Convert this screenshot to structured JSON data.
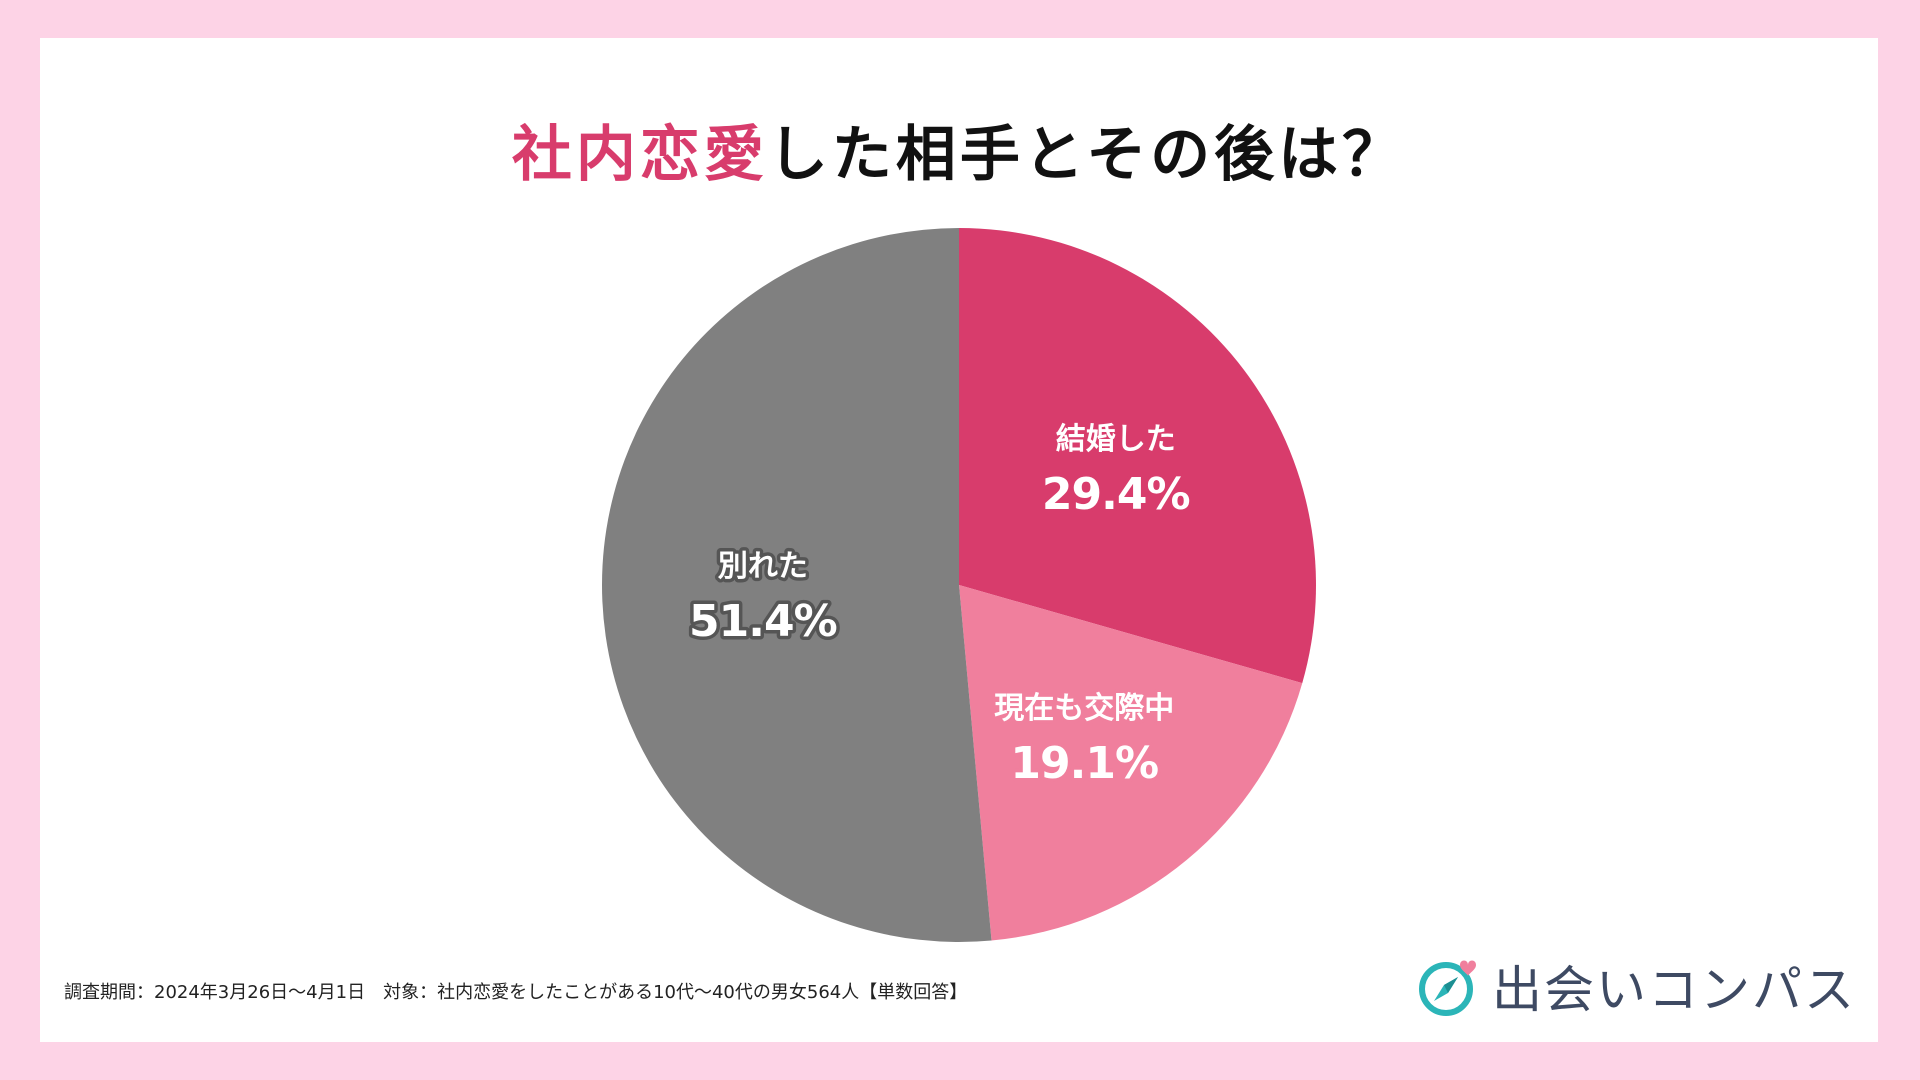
{
  "title": {
    "accent": "社内恋愛",
    "rest": "した相手とその後は？"
  },
  "footnote": "調査期間：2024年3月26日〜4月1日　対象：社内恋愛をしたことがある10代〜40代の男女564人【単数回答】",
  "brand": {
    "name": "出会いコンパス",
    "icon": "compass-heart-icon"
  },
  "colors": {
    "background": "#fdd3e6",
    "accent": "#d83c6c"
  },
  "chart_data": {
    "type": "pie",
    "title": "社内恋愛した相手とその後は？",
    "unit": "%",
    "slices": [
      {
        "label": "結婚した",
        "value": 29.4,
        "display": "29.4%",
        "color": "#d83c6c"
      },
      {
        "label": "現在も交際中",
        "value": 19.1,
        "display": "19.1%",
        "color": "#f07f9d"
      },
      {
        "label": "別れた",
        "value": 51.4,
        "display": "51.4%",
        "color": "#808080"
      }
    ],
    "start_angle": "12 o'clock",
    "direction": "clockwise",
    "legend": "none"
  }
}
